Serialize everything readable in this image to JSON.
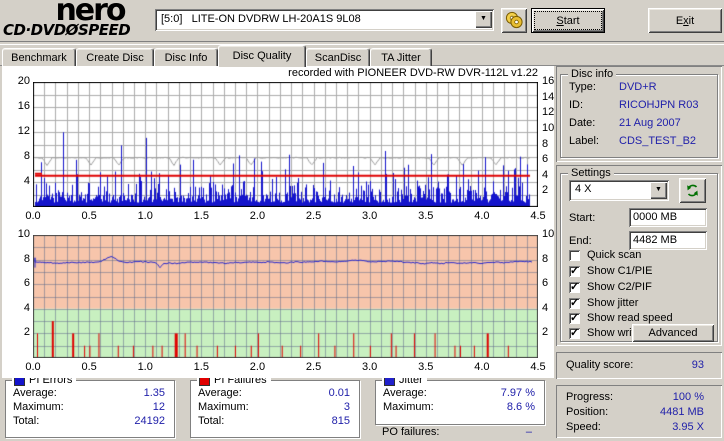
{
  "app": {
    "logo": {
      "line1": "nero",
      "line2_left": "CD·DVD",
      "line2_disc": "Ø",
      "line2_right": "SPEED"
    },
    "drive_selector": {
      "value": "[5:0]   LITE-ON DVDRW LH-20A1S 9L08"
    },
    "buttons": {
      "start": {
        "pre": "",
        "hot": "S",
        "post": "tart"
      },
      "exit": {
        "pre": "E",
        "hot": "x",
        "post": "it"
      }
    }
  },
  "tabs": [
    {
      "label": "Benchmark"
    },
    {
      "label": "Create Disc"
    },
    {
      "label": "Disc Info"
    },
    {
      "label": "Disc Quality",
      "active": true
    },
    {
      "label": "ScanDisc"
    },
    {
      "label": "TA Jitter"
    }
  ],
  "chart_data": [
    {
      "type": "bar",
      "title": "recorded with PIONEER DVD-RW  DVR-112L v1.22",
      "x_axis": {
        "min": 0,
        "max": 4.5,
        "ticks": [
          "0.0",
          "0.5",
          "1.0",
          "1.5",
          "2.0",
          "2.5",
          "3.0",
          "3.5",
          "4.0",
          "4.5"
        ]
      },
      "left_axis": {
        "min": 0,
        "max": 20,
        "tick_values": [
          20,
          16,
          12,
          8,
          4
        ],
        "ticks": [
          "20",
          "16",
          "12",
          "8",
          "4"
        ]
      },
      "right_axis": {
        "min": 0,
        "max": 16,
        "tick_values": [
          16,
          14,
          12,
          10,
          8,
          6,
          4,
          2
        ],
        "ticks": [
          "16",
          "14",
          "12",
          "10",
          "8",
          "6",
          "4",
          "2"
        ]
      },
      "grid": true,
      "series": [
        {
          "name": "PI Errors",
          "style": "spikes",
          "color": "#1414cc",
          "average": 1.35,
          "maximum": 12,
          "total": 24192
        },
        {
          "name": "read speed",
          "style": "line",
          "color": "#9c9c9c",
          "level_right_axis": 6.3
        },
        {
          "name": "write speed",
          "style": "line",
          "color": "#e00000",
          "level_right_axis": 4.0
        }
      ]
    },
    {
      "type": "line",
      "x_axis": {
        "min": 0,
        "max": 4.5,
        "ticks": [
          "0.0",
          "0.5",
          "1.0",
          "1.5",
          "2.0",
          "2.5",
          "3.0",
          "3.5",
          "4.0",
          "4.5"
        ]
      },
      "left_axis": {
        "min": 0,
        "max": 10,
        "tick_values": [
          10,
          8,
          6,
          4,
          2
        ],
        "ticks": [
          "10",
          "8",
          "6",
          "4",
          "2"
        ]
      },
      "right_axis": {
        "min": 0,
        "max": 10,
        "tick_values": [
          10,
          8,
          6,
          4,
          2
        ],
        "ticks": [
          "10",
          "8",
          "6",
          "4",
          "2"
        ]
      },
      "zones": [
        {
          "from": 4,
          "to": 10,
          "color": "#f7c5ab"
        },
        {
          "from": 0,
          "to": 4,
          "color": "#c8f0c0"
        }
      ],
      "grid": true,
      "series": [
        {
          "name": "Jitter",
          "style": "line",
          "color": "#2828cc",
          "average": 7.97,
          "maximum": 8.6
        },
        {
          "name": "PI Failures",
          "style": "bars",
          "color": "#e00000",
          "average": 0.01,
          "maximum": 3,
          "total": 815
        }
      ]
    }
  ],
  "disc_info": {
    "title": "Disc info",
    "rows": [
      {
        "label": "Type:",
        "value": "DVD+R"
      },
      {
        "label": "ID:",
        "value": "RICOHJPN R03"
      },
      {
        "label": "Date:",
        "value": "21 Aug 2007"
      },
      {
        "label": "Label:",
        "value": "CDS_TEST_B2"
      }
    ]
  },
  "settings": {
    "title": "Settings",
    "speed_select": {
      "value": "4 X"
    },
    "start_field": {
      "label": "Start:",
      "value": "0000 MB"
    },
    "end_field": {
      "label": "End:",
      "value": "4482 MB"
    },
    "checkboxes": [
      {
        "label": "Quick scan",
        "checked": false,
        "glyph": ""
      },
      {
        "label": "Show C1/PIE",
        "checked": true,
        "glyph": "✓"
      },
      {
        "label": "Show C2/PIF",
        "checked": true,
        "glyph": "✓"
      },
      {
        "label": "Show jitter",
        "checked": true,
        "glyph": "✓"
      },
      {
        "label": "Show read speed",
        "checked": true,
        "glyph": "✓"
      },
      {
        "label": "Show write speed",
        "checked": true,
        "glyph": "✓"
      }
    ],
    "advanced_label": "Advanced"
  },
  "quality": {
    "label": "Quality score:",
    "value": "93"
  },
  "progress": {
    "rows": [
      {
        "label": "Progress:",
        "value": "100 %"
      },
      {
        "label": "Position:",
        "value": "4481 MB"
      },
      {
        "label": "Speed:",
        "value": "3.95 X"
      }
    ]
  },
  "stats": {
    "pi_errors": {
      "title": "PI Errors",
      "color": "#1414cc",
      "rows": [
        [
          "Average:",
          "1.35"
        ],
        [
          "Maximum:",
          "12"
        ],
        [
          "Total:",
          "24192"
        ]
      ]
    },
    "pi_failures": {
      "title": "PI Failures",
      "color": "#e00000",
      "rows": [
        [
          "Average:",
          "0.01"
        ],
        [
          "Maximum:",
          "3"
        ],
        [
          "Total:",
          "815"
        ]
      ]
    },
    "jitter": {
      "title": "Jitter",
      "color": "#2121cc",
      "rows": [
        [
          "Average:",
          "7.97 %"
        ],
        [
          "Maximum:",
          "8.6 %"
        ]
      ]
    },
    "po_failures": {
      "label": "PO failures:",
      "value": "–"
    }
  }
}
